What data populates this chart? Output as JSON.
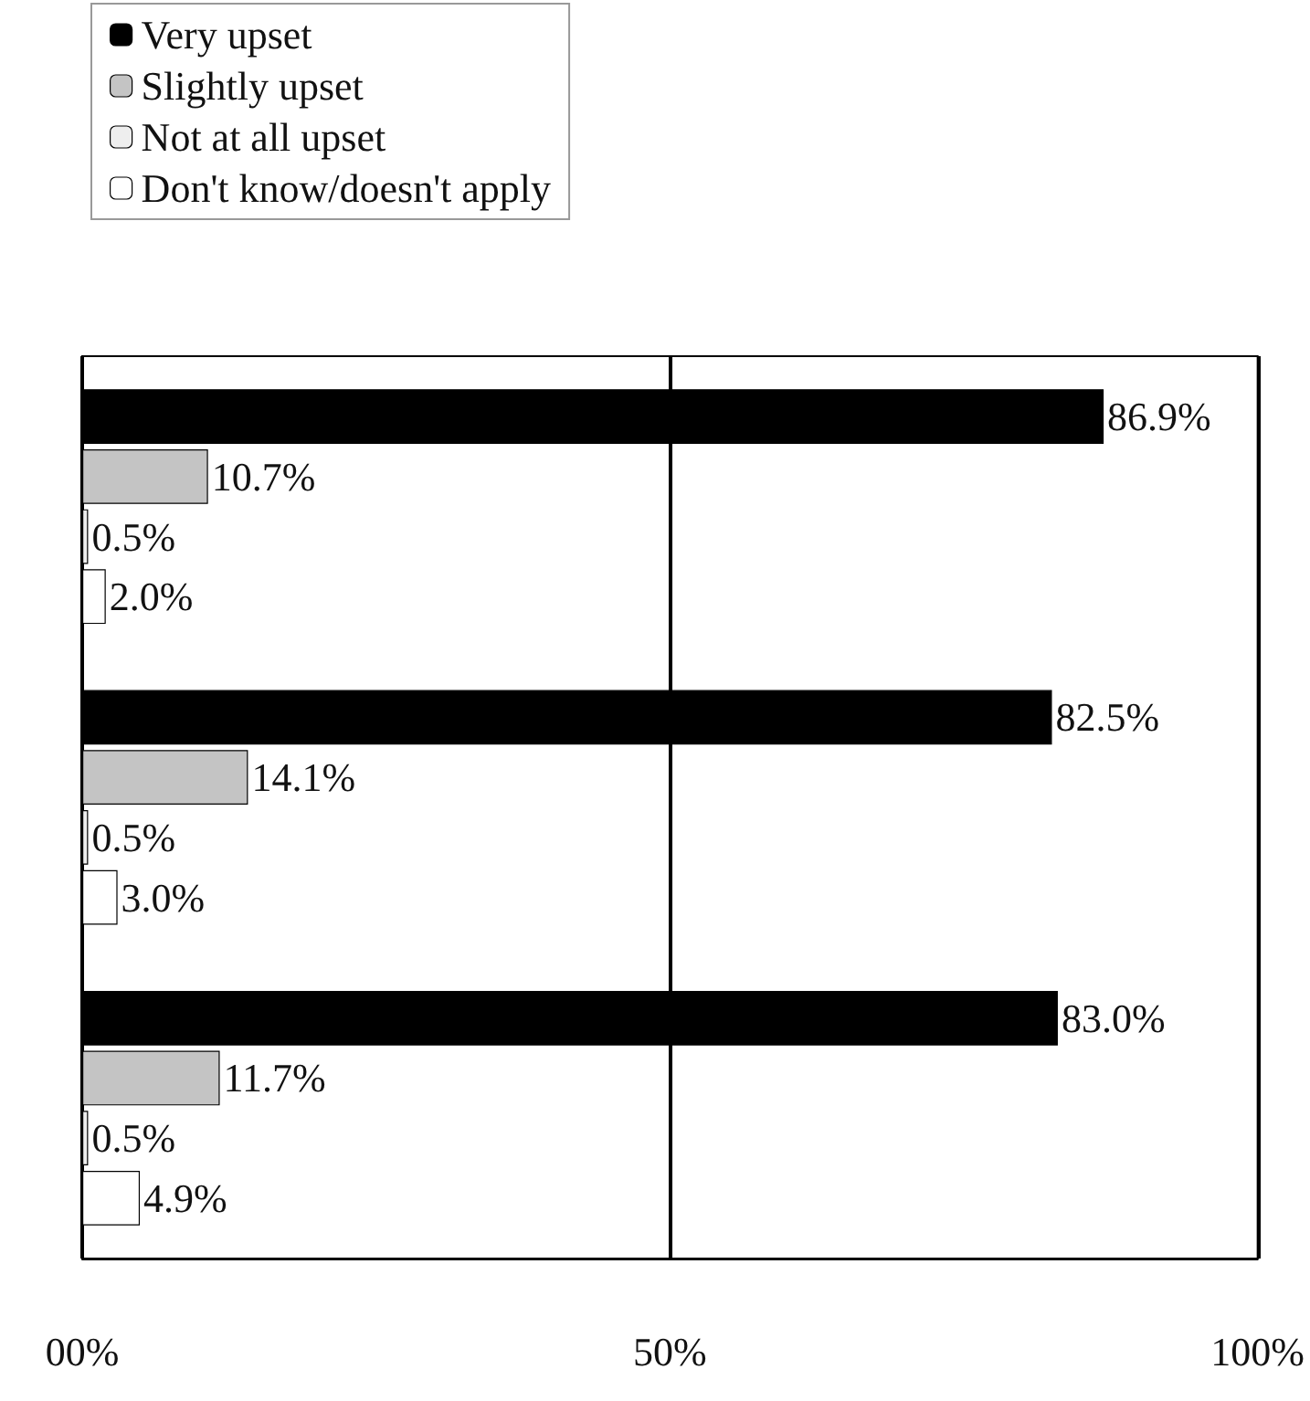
{
  "chart_data": {
    "type": "bar",
    "orientation": "horizontal",
    "categories": [
      null,
      null,
      null
    ],
    "series": [
      {
        "name": "Very upset",
        "color": "#000000",
        "values": [
          86.9,
          82.5,
          83.0
        ],
        "value_labels": [
          "86.9%",
          "82.5%",
          "83.0%"
        ]
      },
      {
        "name": "Slightly upset",
        "color": "#c4c4c4",
        "values": [
          10.7,
          14.1,
          11.7
        ],
        "value_labels": [
          "10.7%",
          "14.1%",
          "11.7%"
        ]
      },
      {
        "name": "Not at all upset",
        "color": "#eeeeee",
        "values": [
          0.5,
          0.5,
          0.5
        ],
        "value_labels": [
          "0.5%",
          "0.5%",
          "0.5%"
        ]
      },
      {
        "name": "Don't know/doesn't apply",
        "color": "#ffffff",
        "values": [
          2.0,
          3.0,
          4.9
        ],
        "value_labels": [
          "2.0%",
          "3.0%",
          "4.9%"
        ]
      }
    ],
    "xlim": [
      0,
      100
    ],
    "xticks": [
      {
        "value": 0,
        "label": "00%"
      },
      {
        "value": 50,
        "label": "50%"
      },
      {
        "value": 100,
        "label": "100%"
      }
    ],
    "grid": "x",
    "legend": "top left"
  }
}
